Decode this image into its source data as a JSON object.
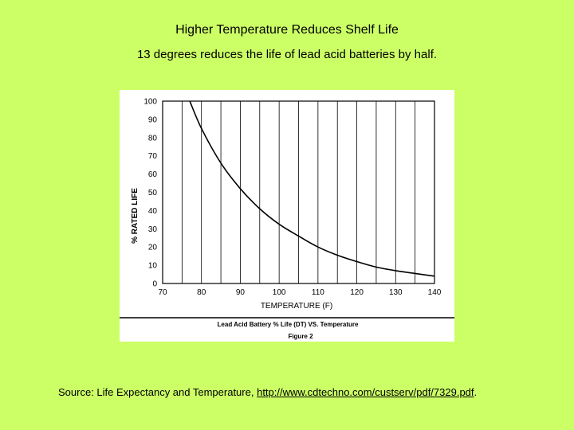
{
  "slide": {
    "title": "Higher Temperature Reduces Shelf Life",
    "subtitle": "13 degrees reduces the life of lead acid batteries by half.",
    "source_prefix": "Source: Life Expectancy and Temperature,",
    "source_url": "http://www.cdtechno.com/custserv/pdf/7329.pdf",
    "source_suffix": "."
  },
  "chart_data": {
    "type": "line",
    "title": "Lead Acid Battery % Life (DT) VS. Temperature",
    "caption": "Figure 2",
    "xlabel": "TEMPERATURE   (F)",
    "ylabel": "%  RATED  LIFE",
    "xlim": [
      70,
      140
    ],
    "ylim": [
      0,
      100
    ],
    "x_ticks": [
      "70",
      "80",
      "90",
      "100",
      "110",
      "120",
      "130",
      "140"
    ],
    "y_ticks": [
      "0",
      "10",
      "20",
      "30",
      "40",
      "50",
      "60",
      "70",
      "80",
      "90",
      "100"
    ],
    "grid": "vertical",
    "series": [
      {
        "name": "% Rated Life",
        "x": [
          77,
          80,
          85,
          90,
          95,
          100,
          105,
          110,
          115,
          120,
          125,
          130,
          135,
          140
        ],
        "y": [
          100,
          85,
          66,
          52,
          41,
          32.5,
          26,
          20,
          15.5,
          12,
          9,
          7,
          5.5,
          4
        ]
      }
    ],
    "colors": {
      "background": "#ccff66",
      "plot": "#ffffff",
      "ink": "#000000"
    }
  }
}
